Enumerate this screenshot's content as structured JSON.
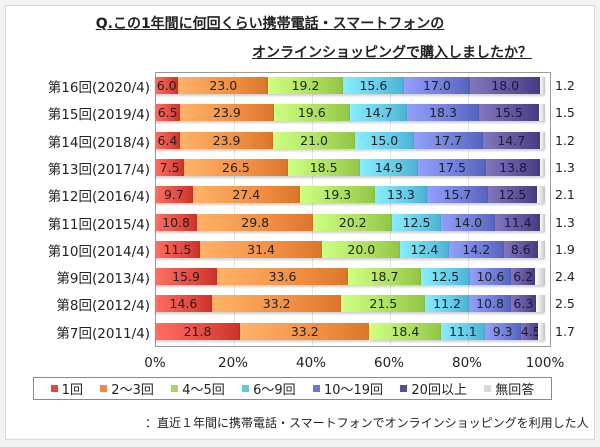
{
  "title": {
    "line1": "Q.この1年間に何回くらい携帯電話・スマートフォンの",
    "line2": "オンラインショッピングで購入しましたか？"
  },
  "footnote": "：直近１年間に携帯電話・スマートフォンでオンラインショッピングを利用した人",
  "chart_data": {
    "type": "bar",
    "orientation": "horizontal",
    "stacked": "percent",
    "title": "Q.この1年間に何回くらい携帯電話・スマートフォンのオンラインショッピングで購入しましたか？",
    "xlabel": "",
    "ylabel": "",
    "xlim": [
      0,
      100
    ],
    "x_ticks": [
      "0%",
      "20%",
      "40%",
      "60%",
      "80%",
      "100%"
    ],
    "grid": true,
    "legend_position": "bottom",
    "categories": [
      "第16回(2020/4)",
      "第15回(2019/4)",
      "第14回(2018/4)",
      "第13回(2017/4)",
      "第12回(2016/4)",
      "第11回(2015/4)",
      "第10回(2014/4)",
      "第9回(2013/4)",
      "第8回(2012/4)",
      "第7回(2011/4)"
    ],
    "series": [
      {
        "name": "1回",
        "color": "#e0463c",
        "values": [
          6.0,
          6.5,
          6.4,
          7.5,
          9.7,
          10.8,
          11.5,
          15.9,
          14.6,
          21.8
        ]
      },
      {
        "name": "2～3回",
        "color": "#ee8a3f",
        "values": [
          23.0,
          23.9,
          23.9,
          26.5,
          27.4,
          29.8,
          31.4,
          33.6,
          33.2,
          33.2
        ]
      },
      {
        "name": "4～5回",
        "color": "#a6d95a",
        "values": [
          19.2,
          19.6,
          21.0,
          18.5,
          19.3,
          20.2,
          20.0,
          18.7,
          21.5,
          18.4
        ]
      },
      {
        "name": "6～9回",
        "color": "#5fc6e6",
        "values": [
          15.6,
          14.7,
          15.0,
          14.9,
          13.3,
          12.5,
          12.4,
          12.5,
          11.2,
          11.1
        ]
      },
      {
        "name": "10～19回",
        "color": "#6a78d4",
        "values": [
          17.0,
          18.3,
          17.7,
          17.5,
          15.7,
          14.0,
          14.2,
          10.6,
          10.8,
          9.3
        ]
      },
      {
        "name": "20回以上",
        "color": "#5a4f96",
        "values": [
          18.0,
          15.5,
          14.7,
          13.8,
          12.5,
          11.4,
          8.6,
          6.2,
          6.3,
          4.5
        ]
      },
      {
        "name": "無回答",
        "color": "#d8d8d8",
        "values": [
          1.2,
          1.5,
          1.2,
          1.3,
          2.1,
          1.3,
          1.9,
          2.4,
          2.5,
          1.7
        ]
      }
    ]
  }
}
